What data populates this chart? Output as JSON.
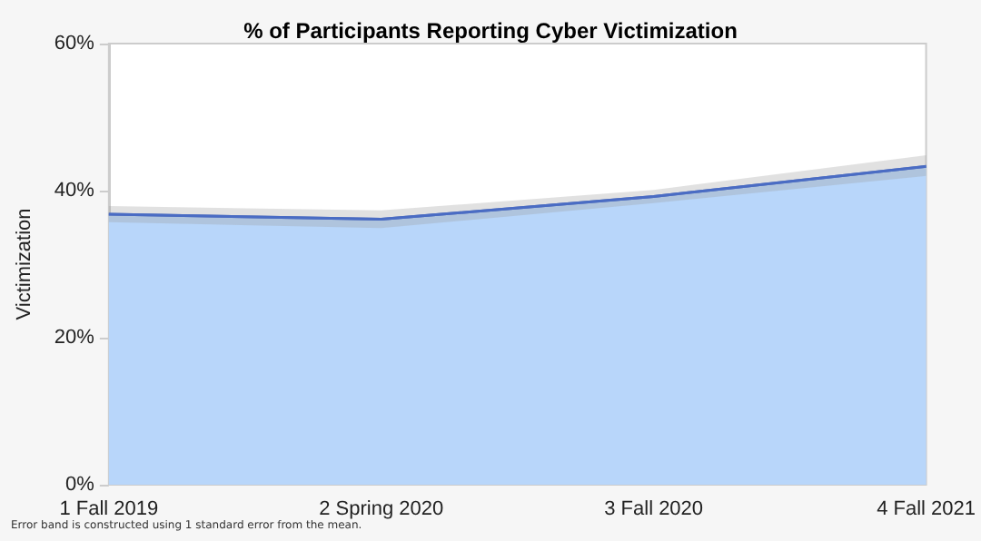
{
  "chart_data": {
    "type": "area",
    "title": "% of Participants Reporting Cyber Victimization",
    "ylabel": "Victimization",
    "categories": [
      "1 Fall 2019",
      "2 Spring 2020",
      "3 Fall 2020",
      "4 Fall 2021"
    ],
    "series": [
      {
        "color": "#b8d6fa",
        "values": [
          36.8,
          36.1,
          39.2,
          43.3
        ],
        "lower": [
          35.7,
          34.9,
          38.3,
          42.0
        ],
        "upper": [
          37.9,
          37.3,
          40.1,
          44.8
        ]
      }
    ],
    "ylim": [
      0,
      60
    ],
    "yticks": [
      {
        "value": 0,
        "label": "0%"
      },
      {
        "value": 20,
        "label": "20%"
      },
      {
        "value": 40,
        "label": "40%"
      },
      {
        "value": 60,
        "label": "60%"
      }
    ],
    "grid": false,
    "marker": "none",
    "line_style": "solid",
    "annotations": [
      "Error band is constructed using 1 standard error from the mean."
    ]
  }
}
